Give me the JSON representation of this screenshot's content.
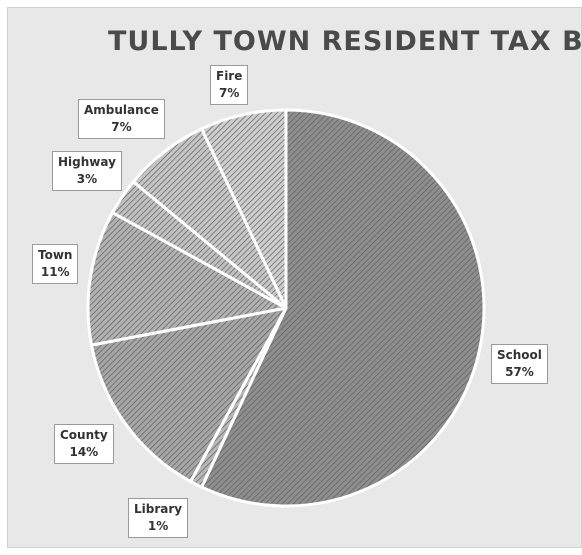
{
  "chart_data": {
    "type": "pie",
    "title": "TULLY TOWN RESIDENT TAX BILL",
    "slices": [
      {
        "label": "School",
        "value": 57,
        "value_label": "57%"
      },
      {
        "label": "Library",
        "value": 1,
        "value_label": "1%"
      },
      {
        "label": "County",
        "value": 14,
        "value_label": "14%"
      },
      {
        "label": "Town",
        "value": 11,
        "value_label": "11%"
      },
      {
        "label": "Highway",
        "value": 3,
        "value_label": "3%"
      },
      {
        "label": "Ambulance",
        "value": 7,
        "value_label": "7%"
      },
      {
        "label": "Fire",
        "value": 7,
        "value_label": "7%"
      }
    ],
    "legend": "none",
    "colors": {
      "background": "#e8e8e8",
      "slice_fill": "#a8a8a8",
      "hatch": "#5e5e5e",
      "separator": "#ffffff"
    }
  }
}
